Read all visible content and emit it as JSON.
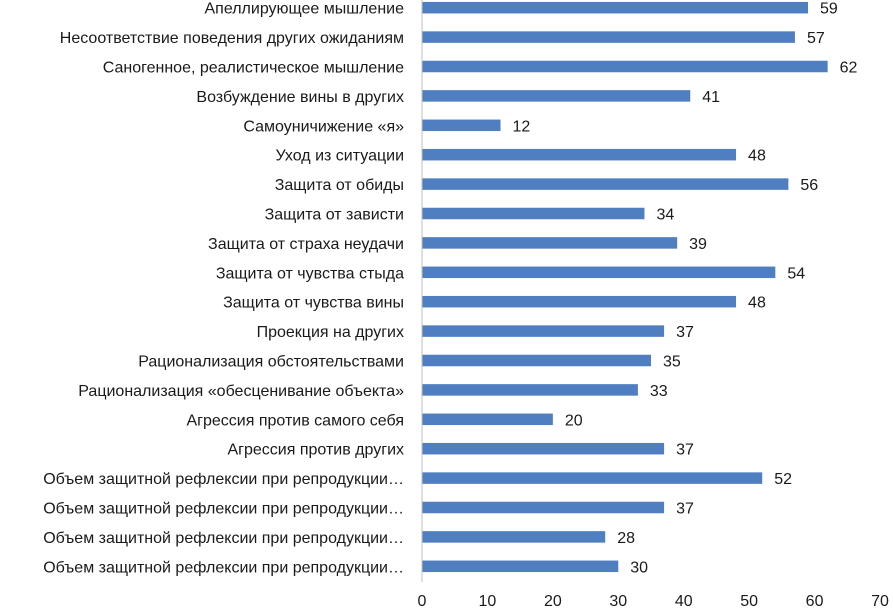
{
  "chart_data": {
    "type": "bar",
    "orientation": "horizontal",
    "title": "",
    "xlabel": "",
    "ylabel": "",
    "xlim": [
      0,
      70
    ],
    "ticks": [
      "0",
      "10",
      "20",
      "30",
      "40",
      "50",
      "60",
      "70"
    ],
    "grid": false,
    "bar_color": "#4f7fc0",
    "categories": [
      "Апеллирующее мышление",
      "Несоответствие поведения других ожиданиям",
      "Саногенное, реалистическое мышление",
      "Возбуждение вины в других",
      "Самоуничижение «я»",
      "Уход из ситуации",
      "Защита от обиды",
      "Защита от зависти",
      "Защита от страха неудачи",
      "Защита от чувства стыда",
      "Защита от чувства вины",
      "Проекция на других",
      "Рационализация обстоятельствами",
      "Рационализация «обесценивание объекта»",
      "Агрессия против самого себя",
      "Агрессия против других",
      "Объем защитной рефлексии при репродукции…",
      "Объем защитной рефлексии при репродукции…",
      "Объем защитной рефлексии при репродукции…",
      "Объем защитной рефлексии при репродукции…"
    ],
    "values": [
      59,
      57,
      62,
      41,
      12,
      48,
      56,
      34,
      39,
      54,
      48,
      37,
      35,
      33,
      20,
      37,
      52,
      37,
      28,
      30
    ],
    "value_labels": [
      "59",
      "57",
      "62",
      "41",
      "12",
      "48",
      "56",
      "34",
      "39",
      "54",
      "48",
      "37",
      "35",
      "33",
      "20",
      "37",
      "52",
      "37",
      "28",
      "30"
    ]
  }
}
